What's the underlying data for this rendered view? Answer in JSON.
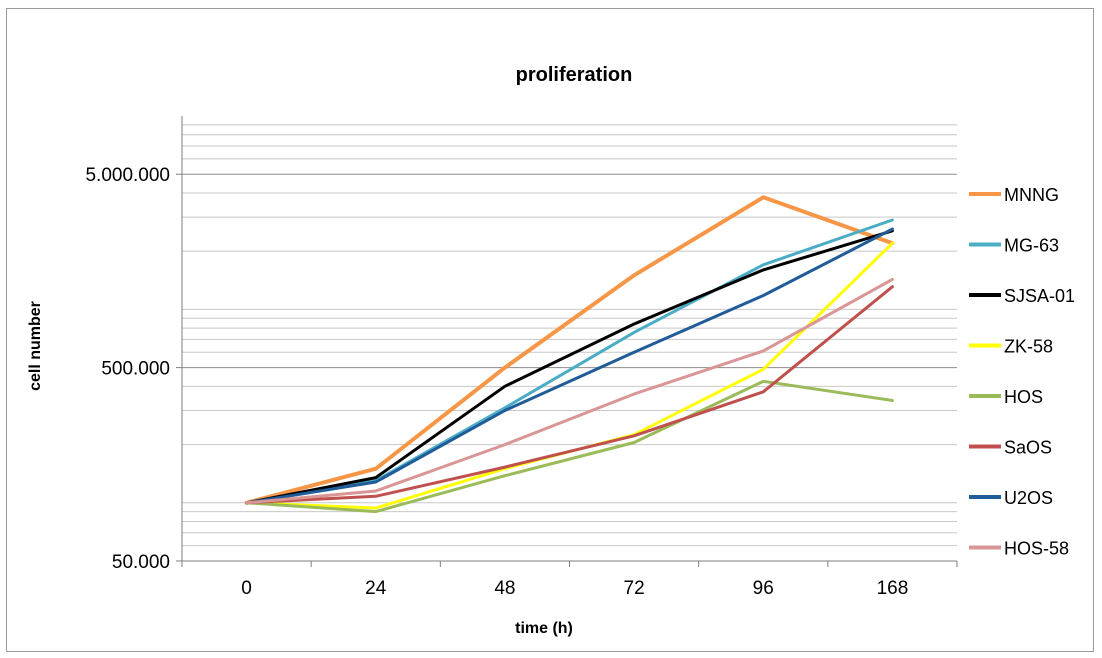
{
  "chart_data": {
    "type": "line",
    "title": "proliferation",
    "xlabel": "time (h)",
    "ylabel": "cell number",
    "y_scale": "log",
    "ylim": [
      50000,
      10000000
    ],
    "categories": [
      "0",
      "24",
      "48",
      "72",
      "96",
      "168"
    ],
    "y_ticks": [
      {
        "value": 50000,
        "label": "50.000"
      },
      {
        "value": 500000,
        "label": "500.000"
      },
      {
        "value": 5000000,
        "label": "5.000.000"
      }
    ],
    "grid": true,
    "legend_position": "right",
    "series": [
      {
        "name": "MNNG",
        "color": "#f79646",
        "values": [
          100000,
          150000,
          500000,
          1500000,
          3800000,
          2200000
        ]
      },
      {
        "name": "MG-63",
        "color": "#4bacc6",
        "values": [
          100000,
          130000,
          310000,
          760000,
          1700000,
          2900000
        ]
      },
      {
        "name": "SJSA-01",
        "color": "#000000",
        "values": [
          100000,
          135000,
          400000,
          840000,
          1600000,
          2550000
        ]
      },
      {
        "name": "ZK-58",
        "color": "#ffff00",
        "values": [
          100000,
          94000,
          150000,
          225000,
          490000,
          2200000
        ]
      },
      {
        "name": "HOS",
        "color": "#9bbb59",
        "values": [
          100000,
          90000,
          138000,
          205000,
          425000,
          338000
        ]
      },
      {
        "name": "SaOS",
        "color": "#c0504d",
        "values": [
          100000,
          108000,
          153000,
          222000,
          375000,
          1310000
        ]
      },
      {
        "name": "U2OS",
        "color": "#1f5c99",
        "values": [
          100000,
          128000,
          300000,
          600000,
          1180000,
          2600000
        ]
      },
      {
        "name": "HOS-58",
        "color": "#d99694",
        "values": [
          100000,
          115000,
          200000,
          365000,
          610000,
          1430000
        ]
      }
    ]
  }
}
